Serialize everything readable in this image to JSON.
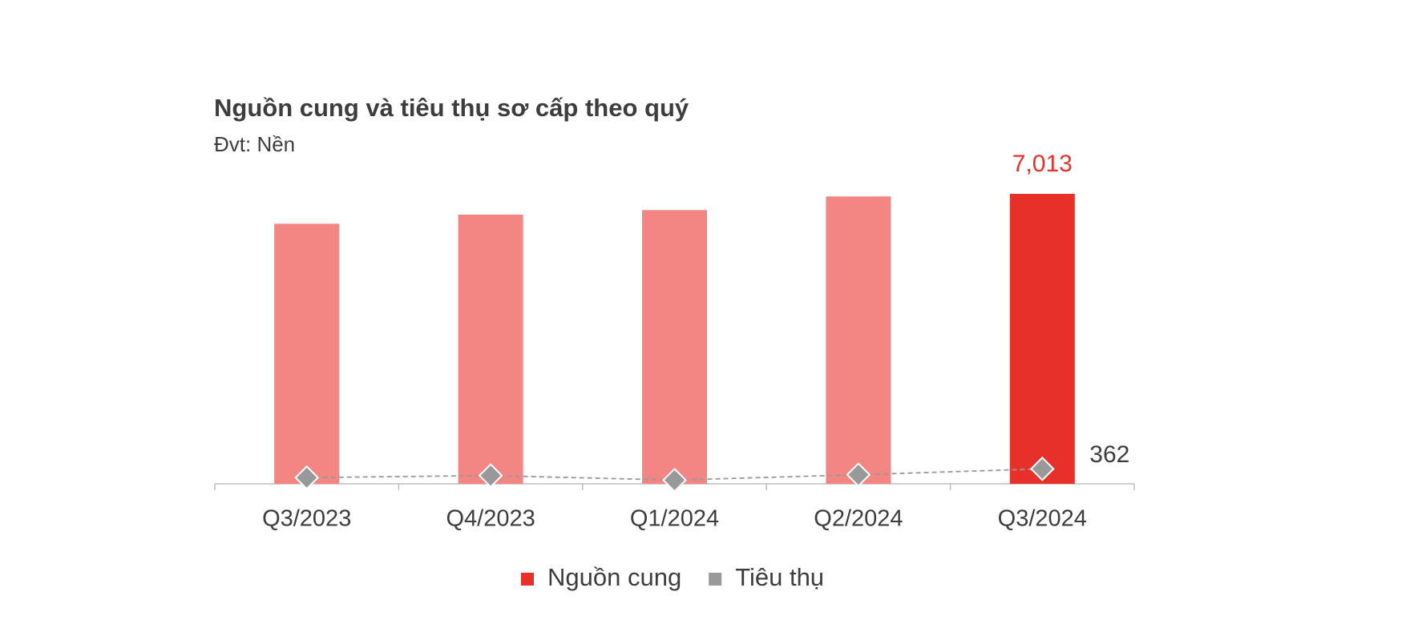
{
  "chart_data": {
    "type": "bar-line",
    "title": "Nguồn cung và tiêu thụ sơ cấp theo quý",
    "subtitle": "Đvt: Nền",
    "categories": [
      "Q3/2023",
      "Q4/2023",
      "Q1/2024",
      "Q2/2024",
      "Q3/2024"
    ],
    "series": [
      {
        "name": "Nguồn cung",
        "type": "bar",
        "color": "#e8302a",
        "colors": [
          "#f38582",
          "#f38582",
          "#f38582",
          "#f38582",
          "#e8302a"
        ],
        "values": [
          6290,
          6510,
          6620,
          6950,
          7013
        ],
        "value_labels": [
          null,
          null,
          null,
          null,
          "7,013"
        ]
      },
      {
        "name": "Tiêu thụ",
        "type": "line",
        "color": "#999999",
        "values": [
          150,
          200,
          90,
          220,
          362
        ]
      }
    ],
    "data_labels": "last",
    "legend": "bottom"
  }
}
